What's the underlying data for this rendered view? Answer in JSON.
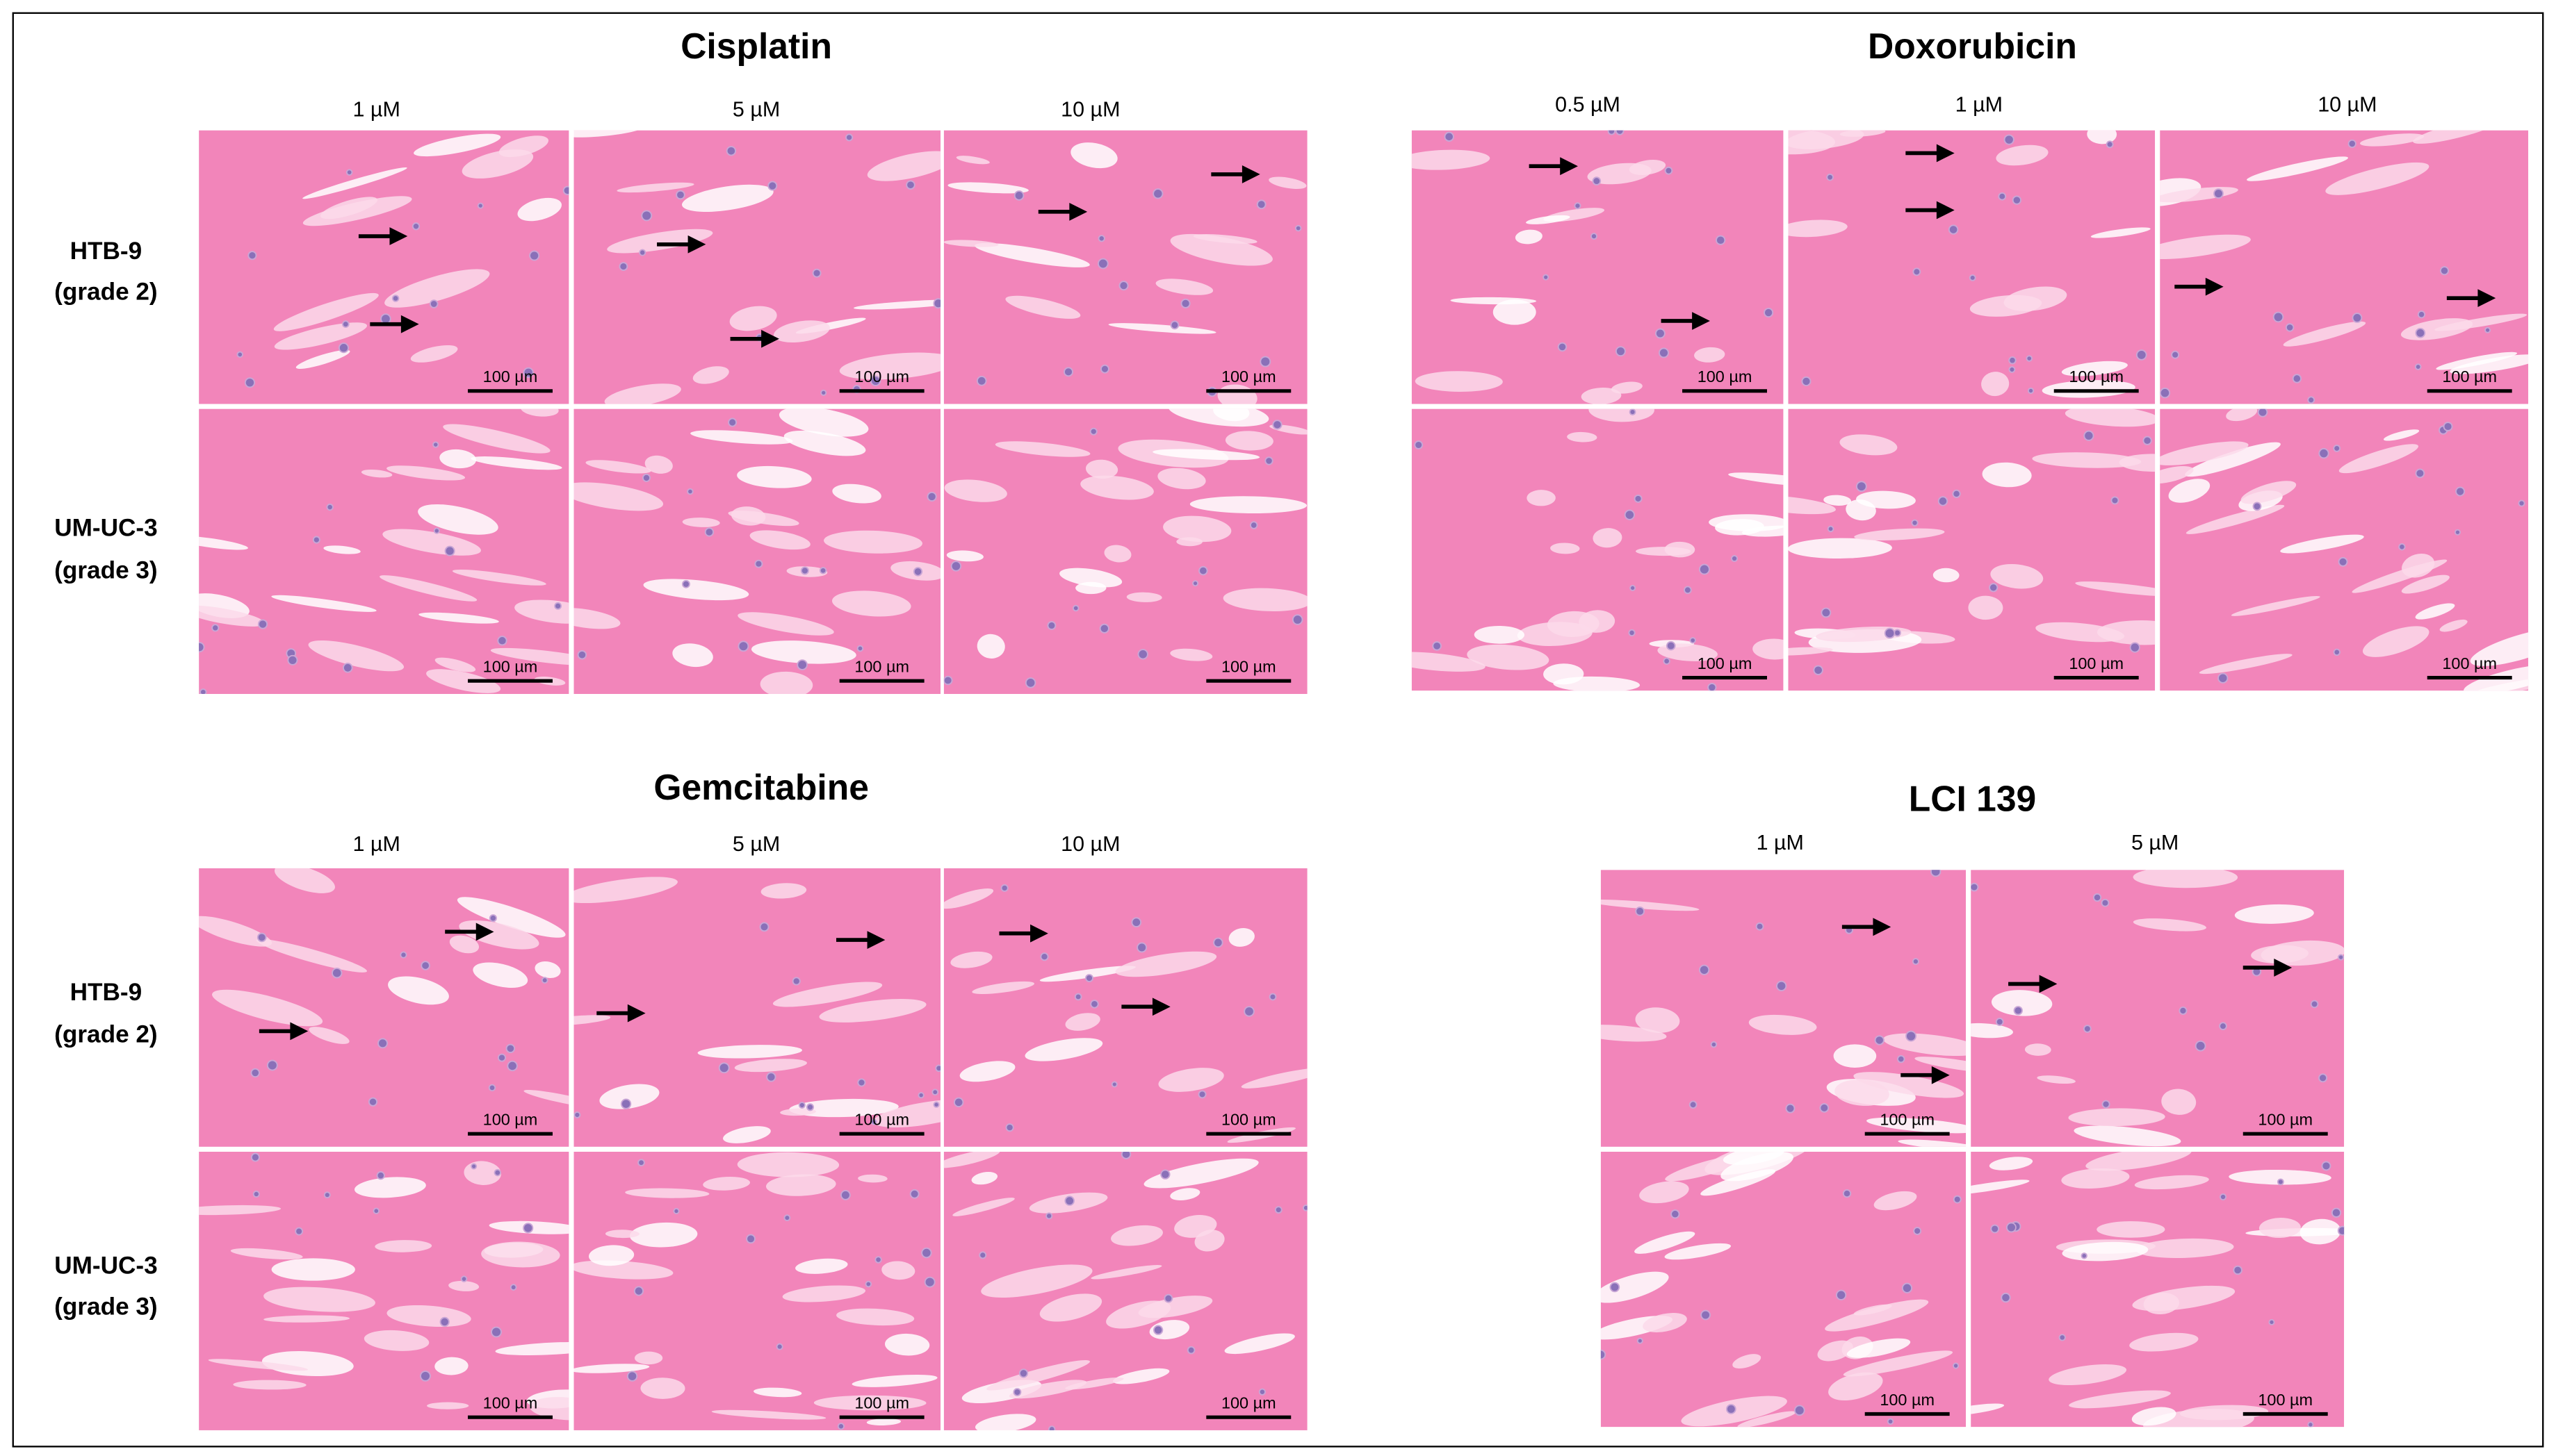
{
  "panels": [
    {
      "title": "Cisplatin",
      "concentrations": [
        "1 µM",
        "5 µM",
        "10 µM"
      ],
      "row_labels": [
        [
          "HTB-9",
          "(grade 2)"
        ],
        [
          "UM-UC-3",
          "(grade 3)"
        ]
      ]
    },
    {
      "title": "Doxorubicin",
      "concentrations": [
        "0.5 µM",
        "1 µM",
        "10 µM"
      ]
    },
    {
      "title": "Gemcitabine",
      "concentrations": [
        "1 µM",
        "5 µM",
        "10 µM"
      ],
      "row_labels": [
        [
          "HTB-9",
          "(grade 2)"
        ],
        [
          "UM-UC-3",
          "(grade 3)"
        ]
      ]
    },
    {
      "title": "LCI 139",
      "concentrations": [
        "1 µM",
        "5 µM"
      ]
    }
  ],
  "scale_bar_label": "100 µm"
}
